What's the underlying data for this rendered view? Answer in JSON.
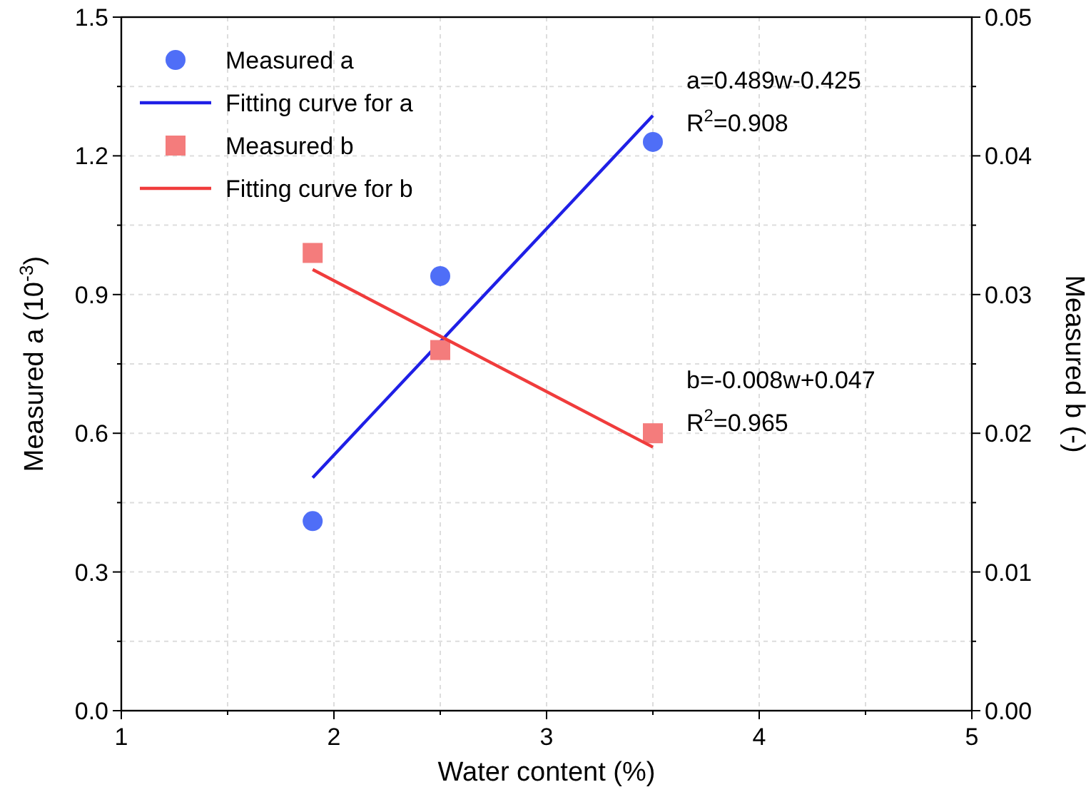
{
  "chart_data": {
    "type": "scatter",
    "xlabel": "Water content (%)",
    "ylabel": "Measured a (10$^{-3}$)",
    "y2label": "Measured b (-)",
    "xlim": [
      1,
      5
    ],
    "xticks": [
      1,
      {
        "value": 1.5,
        "label": null
      },
      2,
      {
        "value": 2.5,
        "label": null
      },
      3,
      {
        "value": 3.5,
        "label": null
      },
      4,
      {
        "value": 4.5,
        "label": null
      },
      5
    ],
    "ylim": [
      0,
      1.5
    ],
    "yticks": [
      {
        "value": 0,
        "label": "0.0"
      },
      {
        "value": 0.15,
        "label": null
      },
      0.3,
      {
        "value": 0.45,
        "label": null
      },
      0.6,
      {
        "value": 0.75,
        "label": null
      },
      0.9,
      {
        "value": 1.05,
        "label": null
      },
      1.2,
      {
        "value": 1.35,
        "label": null
      },
      1.5
    ],
    "y2lim": [
      0,
      0.05
    ],
    "y2ticks": [
      {
        "value": 0,
        "label": "0.00"
      },
      {
        "value": 0.005,
        "label": null
      },
      {
        "value": 0.01,
        "label": "0.01"
      },
      {
        "value": 0.015,
        "label": null
      },
      {
        "value": 0.02,
        "label": "0.02"
      },
      {
        "value": 0.025,
        "label": null
      },
      {
        "value": 0.03,
        "label": "0.03"
      },
      {
        "value": 0.035,
        "label": null
      },
      {
        "value": 0.04,
        "label": "0.04"
      },
      {
        "value": 0.045,
        "label": null
      },
      {
        "value": 0.05,
        "label": "0.05"
      }
    ],
    "grid": true,
    "legend": "top left",
    "series": [
      {
        "name": "Measured a",
        "marker": "circle",
        "color": "#4f6ef7",
        "x": [
          1.9,
          2.5,
          3.5
        ],
        "values": [
          0.41,
          0.94,
          1.23
        ]
      },
      {
        "name": "Fitting curve for a",
        "type": "line",
        "color": "#1f1fe6",
        "x": [
          1.9,
          3.5
        ],
        "values": [
          0.504,
          1.287
        ]
      },
      {
        "name": "Measured b",
        "marker": "square",
        "axis": "y2",
        "color": "#f47c7c",
        "x": [
          1.9,
          2.5,
          3.5
        ],
        "values": [
          0.033,
          0.026,
          0.02
        ]
      },
      {
        "name": "Fitting curve for b",
        "type": "line",
        "axis": "y2",
        "color": "#f03c3c",
        "x": [
          1.9,
          3.5
        ],
        "values": [
          0.0318,
          0.019
        ]
      }
    ],
    "annotations": [
      "a=0.489w-0.425",
      "R$^{2}$=0.908",
      "b=-0.008w+0.047",
      "R$^{2}$=0.965"
    ]
  }
}
